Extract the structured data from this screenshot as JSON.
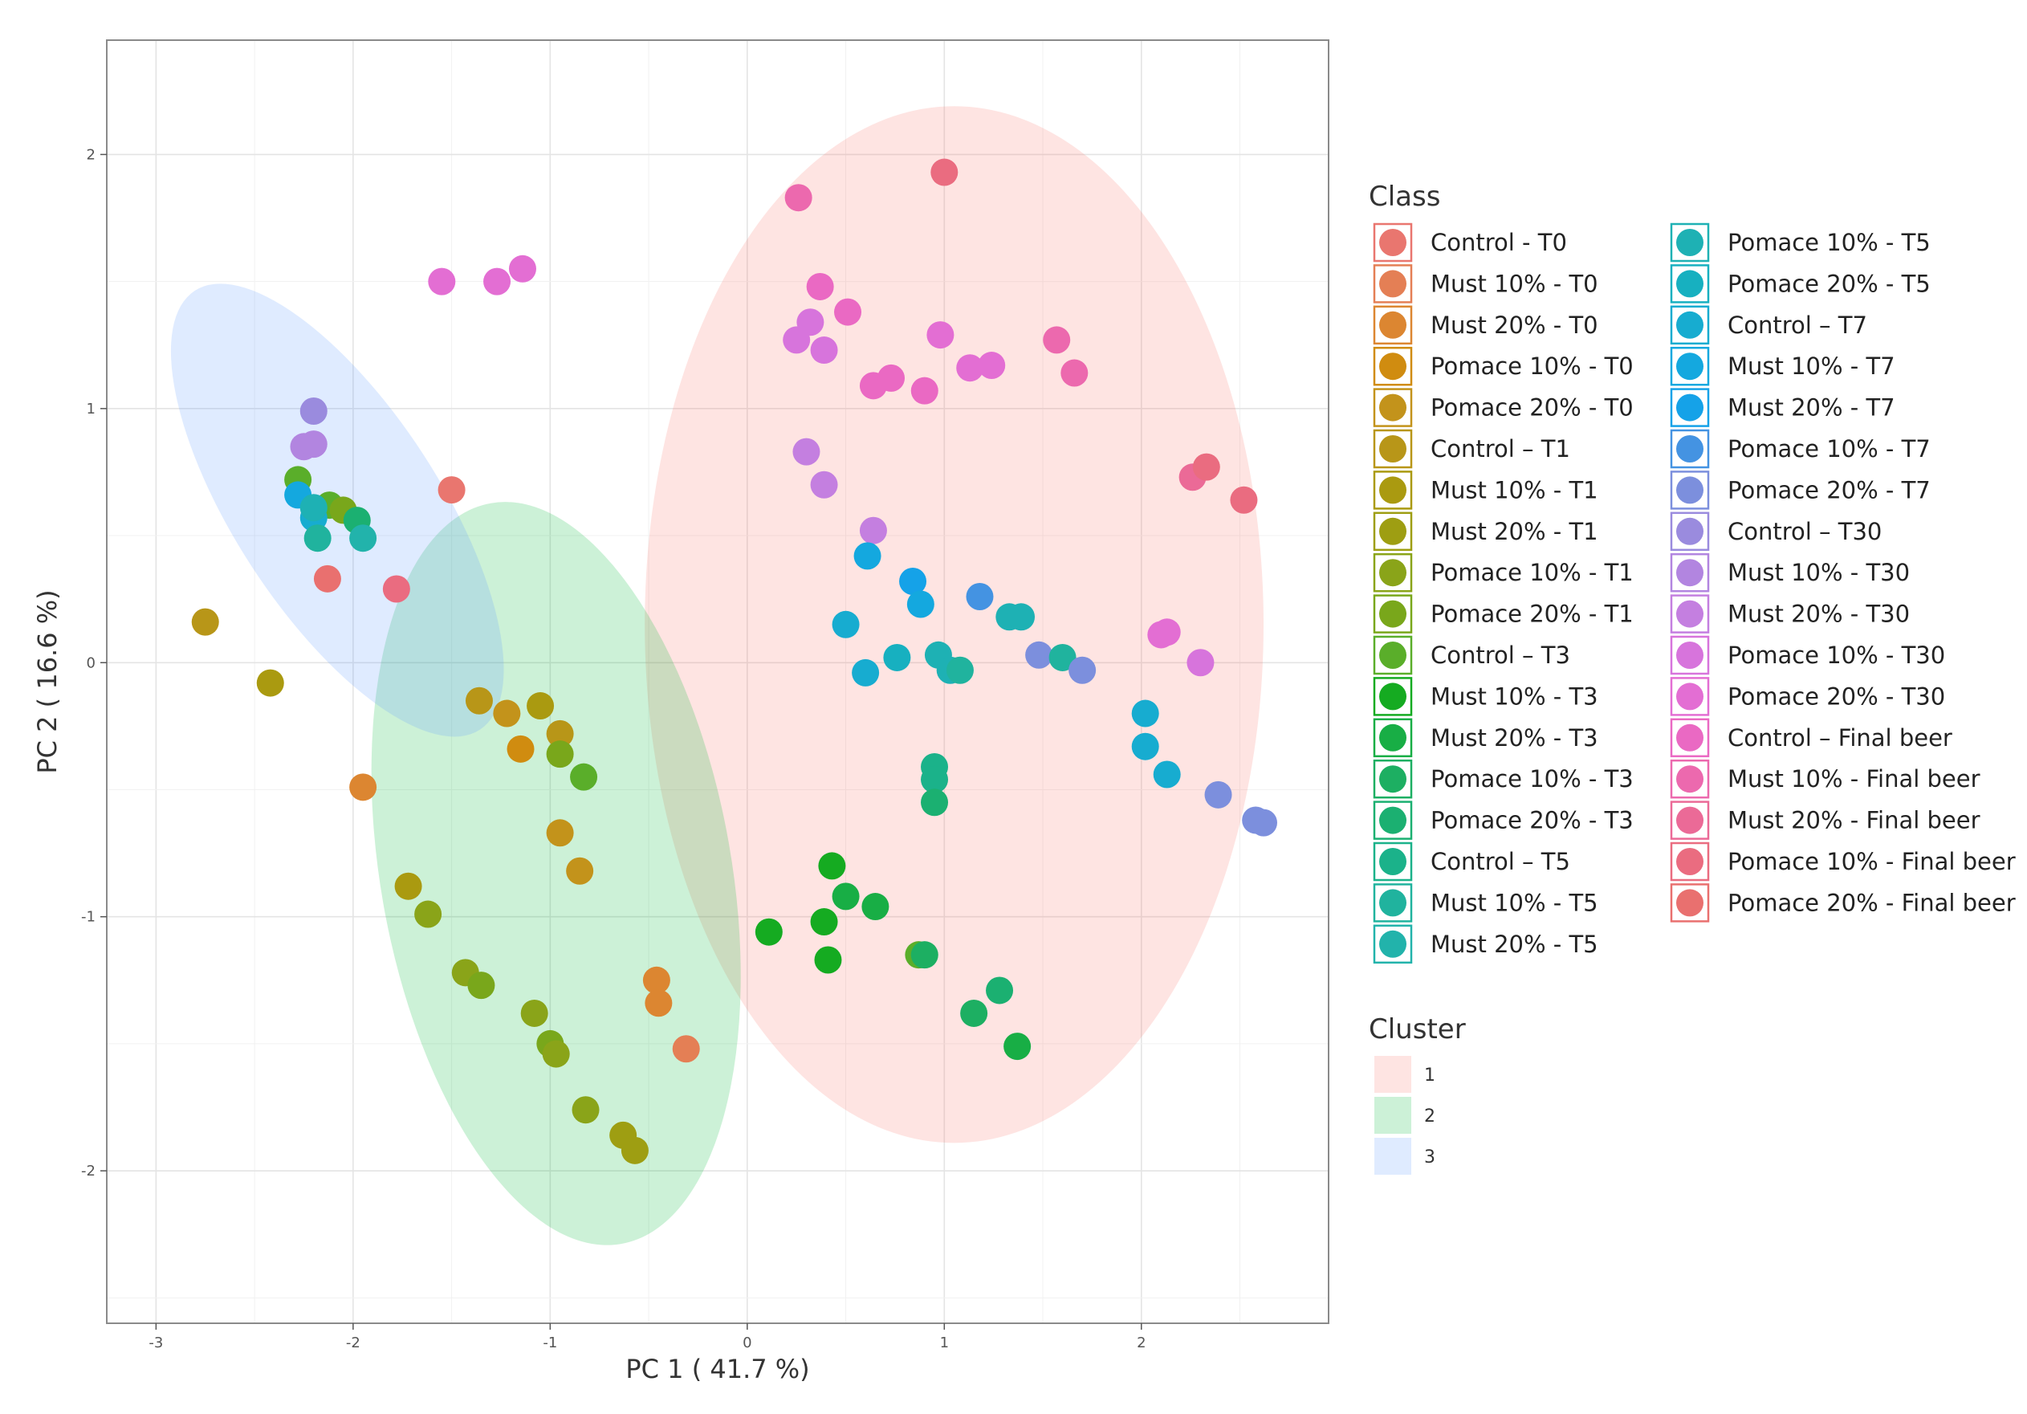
{
  "chart_data": {
    "type": "scatter",
    "xlabel": "PC 1 ( 41.7 %)",
    "ylabel": "PC 2 ( 16.6 %)",
    "xlim": [
      -3.25,
      2.95
    ],
    "ylim": [
      -2.6,
      2.45
    ],
    "x_ticks": [
      -3,
      -2,
      -1,
      0,
      1,
      2
    ],
    "x_tick_labels": [
      "-3",
      "-2",
      "-1",
      "0",
      "1",
      "2"
    ],
    "y_ticks": [
      -2,
      -1,
      0,
      1,
      2
    ],
    "y_tick_labels": [
      "-2",
      "-1",
      "0",
      "1",
      "2"
    ],
    "grid": true,
    "legend_title": "Class",
    "cluster_legend_title": "Cluster",
    "clusters": [
      {
        "label": "1",
        "color": "#f8766d",
        "center": [
          1.05,
          0.15
        ],
        "rx": 1.57,
        "ry": 2.04,
        "angle": 0
      },
      {
        "label": "2",
        "color": "#00ba38",
        "center": [
          -0.97,
          -0.83
        ],
        "rx": 0.89,
        "ry": 1.48,
        "angle": -10
      },
      {
        "label": "3",
        "color": "#619cff",
        "center": [
          -2.08,
          0.6
        ],
        "rx": 0.52,
        "ry": 1.03,
        "angle": -33
      }
    ],
    "classes": [
      {
        "name": "Control - T0",
        "color": "#E9766F"
      },
      {
        "name": "Must 10% - T0",
        "color": "#E47F55"
      },
      {
        "name": "Must 20% - T0",
        "color": "#DC8631"
      },
      {
        "name": "Pomace 10% - T0",
        "color": "#D08C10"
      },
      {
        "name": "Pomace 20% - T0",
        "color": "#C3931B"
      },
      {
        "name": "Control – T1",
        "color": "#B89618"
      },
      {
        "name": "Must 10% - T1",
        "color": "#AA9A10"
      },
      {
        "name": "Must 20% - T1",
        "color": "#9E9E12"
      },
      {
        "name": "Pomace 10% - T1",
        "color": "#8AA419"
      },
      {
        "name": "Pomace 20% - T1",
        "color": "#79A71B"
      },
      {
        "name": "Control – T3",
        "color": "#5AAE2A"
      },
      {
        "name": "Must 10% - T3",
        "color": "#15AB21"
      },
      {
        "name": "Must 20% - T3",
        "color": "#18AE45"
      },
      {
        "name": "Pomace 10% - T3",
        "color": "#1DAF62"
      },
      {
        "name": "Pomace 20% - T3",
        "color": "#1BB071"
      },
      {
        "name": "Control – T5",
        "color": "#1BB28A"
      },
      {
        "name": "Must 10% - T5",
        "color": "#20B39E"
      },
      {
        "name": "Must 20% - T5",
        "color": "#22B3AB"
      },
      {
        "name": "Pomace 10% - T5",
        "color": "#1EB1B4"
      },
      {
        "name": "Pomace 20% - T5",
        "color": "#17B0C0"
      },
      {
        "name": "Control – T7",
        "color": "#17ACD0"
      },
      {
        "name": "Must 10% - T7",
        "color": "#14A8DF"
      },
      {
        "name": "Must 20% - T7",
        "color": "#15A2E8"
      },
      {
        "name": "Pomace 10% - T7",
        "color": "#4493E2"
      },
      {
        "name": "Pomace 20% - T7",
        "color": "#7C8FDD"
      },
      {
        "name": "Control – T30",
        "color": "#9A8BDE"
      },
      {
        "name": "Must 10% - T30",
        "color": "#B285E0"
      },
      {
        "name": "Must 20% - T30",
        "color": "#C47FE0"
      },
      {
        "name": "Pomace 10% - T30",
        "color": "#D774DC"
      },
      {
        "name": "Pomace 20% - T30",
        "color": "#E36ED3"
      },
      {
        "name": "Control – Final beer",
        "color": "#EA69C3"
      },
      {
        "name": "Must 10% - Final beer",
        "color": "#EC69AE"
      },
      {
        "name": "Must 20% - Final beer",
        "color": "#EB6A97"
      },
      {
        "name": "Pomace 10% - Final beer",
        "color": "#EA6C80"
      },
      {
        "name": "Pomace 20% - Final beer",
        "color": "#E9706F"
      }
    ],
    "points": [
      [
        -2.75,
        0.16,
        "#B89618"
      ],
      [
        -2.42,
        -0.08,
        "#AA9A10"
      ],
      [
        -1.95,
        -0.49,
        "#DC8631"
      ],
      [
        -1.36,
        -0.15,
        "#B89618"
      ],
      [
        -1.22,
        -0.2,
        "#C3931B"
      ],
      [
        -1.15,
        -0.34,
        "#D08C10"
      ],
      [
        -1.05,
        -0.17,
        "#AA9A10"
      ],
      [
        -0.95,
        -0.28,
        "#B89618"
      ],
      [
        -0.95,
        -0.36,
        "#79A71B"
      ],
      [
        -0.95,
        -0.67,
        "#C3931B"
      ],
      [
        -0.85,
        -0.82,
        "#C3931B"
      ],
      [
        -0.83,
        -0.45,
        "#5AAE2A"
      ],
      [
        -1.72,
        -0.88,
        "#AA9A10"
      ],
      [
        -1.62,
        -0.99,
        "#8AA419"
      ],
      [
        -1.43,
        -1.22,
        "#8AA419"
      ],
      [
        -1.35,
        -1.27,
        "#79A71B"
      ],
      [
        -1.08,
        -1.38,
        "#8AA419"
      ],
      [
        -1.0,
        -1.5,
        "#79A71B"
      ],
      [
        -0.97,
        -1.54,
        "#8AA419"
      ],
      [
        -0.82,
        -1.76,
        "#8AA419"
      ],
      [
        -0.63,
        -1.86,
        "#9E9E12"
      ],
      [
        -0.57,
        -1.92,
        "#9E9E12"
      ],
      [
        -0.46,
        -1.25,
        "#DC8631"
      ],
      [
        -0.45,
        -1.34,
        "#DC8631"
      ],
      [
        -0.31,
        -1.52,
        "#E47F55"
      ],
      [
        -2.2,
        0.99,
        "#9A8BDE"
      ],
      [
        -2.25,
        0.85,
        "#B285E0"
      ],
      [
        -2.2,
        0.86,
        "#B285E0"
      ],
      [
        -2.28,
        0.72,
        "#5AAE2A"
      ],
      [
        -2.28,
        0.66,
        "#14A8DF"
      ],
      [
        -2.12,
        0.62,
        "#5AAE2A"
      ],
      [
        -2.05,
        0.6,
        "#79A71B"
      ],
      [
        -1.98,
        0.56,
        "#1BB071"
      ],
      [
        -1.95,
        0.49,
        "#22B3AB"
      ],
      [
        -2.2,
        0.57,
        "#17ACD0"
      ],
      [
        -2.2,
        0.61,
        "#1EB1B4"
      ],
      [
        -2.18,
        0.49,
        "#20B39E"
      ],
      [
        -2.13,
        0.33,
        "#E9706F"
      ],
      [
        -1.78,
        0.29,
        "#EA6C80"
      ],
      [
        -1.5,
        0.68,
        "#E9766F"
      ],
      [
        -1.55,
        1.5,
        "#E36ED3"
      ],
      [
        -1.27,
        1.5,
        "#E36ED3"
      ],
      [
        -1.14,
        1.55,
        "#E36ED3"
      ],
      [
        0.26,
        1.83,
        "#EC69AE"
      ],
      [
        1.0,
        1.93,
        "#EA6C80"
      ],
      [
        0.37,
        1.48,
        "#EA69C3"
      ],
      [
        0.51,
        1.38,
        "#EA69C3"
      ],
      [
        0.32,
        1.34,
        "#D774DC"
      ],
      [
        0.25,
        1.27,
        "#D774DC"
      ],
      [
        0.39,
        1.23,
        "#D774DC"
      ],
      [
        0.64,
        1.09,
        "#EA69C3"
      ],
      [
        0.73,
        1.12,
        "#EA69C3"
      ],
      [
        0.9,
        1.07,
        "#EA69C3"
      ],
      [
        0.98,
        1.29,
        "#E36ED3"
      ],
      [
        1.13,
        1.16,
        "#E36ED3"
      ],
      [
        1.24,
        1.17,
        "#E36ED3"
      ],
      [
        1.57,
        1.27,
        "#EC69AE"
      ],
      [
        1.66,
        1.14,
        "#EC69AE"
      ],
      [
        2.26,
        0.73,
        "#EB6A97"
      ],
      [
        2.33,
        0.77,
        "#EA6C80"
      ],
      [
        2.52,
        0.64,
        "#EA6C80"
      ],
      [
        2.1,
        0.11,
        "#E36ED3"
      ],
      [
        2.13,
        0.12,
        "#E36ED3"
      ],
      [
        2.3,
        0.0,
        "#D774DC"
      ],
      [
        0.3,
        0.83,
        "#C47FE0"
      ],
      [
        0.39,
        0.7,
        "#C47FE0"
      ],
      [
        0.64,
        0.52,
        "#C47FE0"
      ],
      [
        0.61,
        0.42,
        "#14A8DF"
      ],
      [
        0.84,
        0.32,
        "#15A2E8"
      ],
      [
        0.88,
        0.23,
        "#14A8DF"
      ],
      [
        0.5,
        0.15,
        "#17ACD0"
      ],
      [
        0.6,
        -0.04,
        "#17ACD0"
      ],
      [
        0.76,
        0.02,
        "#17B0C0"
      ],
      [
        0.97,
        0.03,
        "#1EB1B4"
      ],
      [
        1.03,
        -0.03,
        "#1EB1B4"
      ],
      [
        1.08,
        -0.03,
        "#20B39E"
      ],
      [
        1.18,
        0.26,
        "#4493E2"
      ],
      [
        1.33,
        0.18,
        "#1EB1B4"
      ],
      [
        1.39,
        0.18,
        "#1EB1B4"
      ],
      [
        1.48,
        0.03,
        "#7C8FDD"
      ],
      [
        1.6,
        0.02,
        "#20B39E"
      ],
      [
        1.7,
        -0.03,
        "#7C8FDD"
      ],
      [
        2.02,
        -0.2,
        "#17ACD0"
      ],
      [
        2.02,
        -0.33,
        "#17ACD0"
      ],
      [
        2.13,
        -0.44,
        "#17ACD0"
      ],
      [
        2.39,
        -0.52,
        "#7C8FDD"
      ],
      [
        2.58,
        -0.62,
        "#7C8FDD"
      ],
      [
        2.62,
        -0.63,
        "#7C8FDD"
      ],
      [
        0.95,
        -0.41,
        "#1BB28A"
      ],
      [
        0.95,
        -0.46,
        "#1BB28A"
      ],
      [
        0.95,
        -0.55,
        "#1BB071"
      ],
      [
        0.43,
        -0.8,
        "#15AB21"
      ],
      [
        0.5,
        -0.92,
        "#18AE45"
      ],
      [
        0.65,
        -0.96,
        "#18AE45"
      ],
      [
        0.11,
        -1.06,
        "#15AB21"
      ],
      [
        0.39,
        -1.02,
        "#15AB21"
      ],
      [
        0.41,
        -1.17,
        "#15AB21"
      ],
      [
        0.87,
        -1.15,
        "#5AAE2A"
      ],
      [
        0.9,
        -1.15,
        "#1DAF62"
      ],
      [
        1.15,
        -1.38,
        "#1DAF62"
      ],
      [
        1.28,
        -1.29,
        "#1BB071"
      ],
      [
        1.37,
        -1.51,
        "#18AE45"
      ]
    ]
  }
}
